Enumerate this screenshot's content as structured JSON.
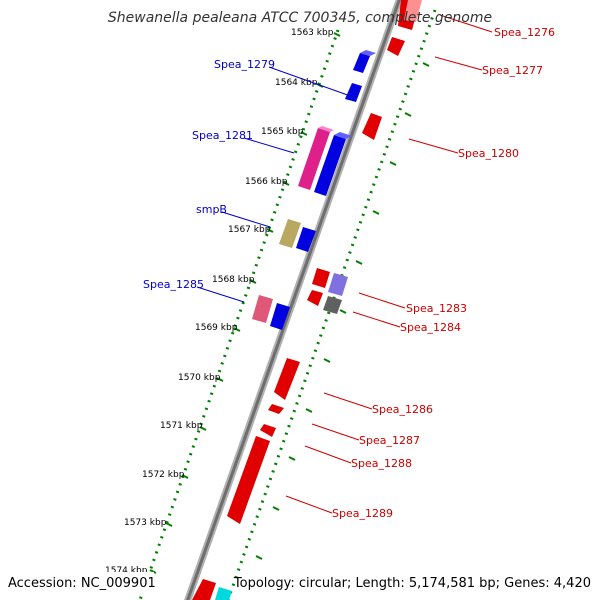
{
  "title": "Shewanella pealeana ATCC 700345, complete genome",
  "footer": {
    "accession": "Accession: NC_009901",
    "topology": "Topology: circular; Length: 5,174,581 bp; Genes: 4,420"
  },
  "colors": {
    "forward_label": "#0000cc",
    "reverse_label": "#cc0000",
    "tick": "#008000",
    "backbone": "#808080"
  },
  "kbp_labels": [
    "1563 kbp",
    "1564 kbp",
    "1565 kbp",
    "1566 kbp",
    "1567 kbp",
    "1568 kbp",
    "1569 kbp",
    "1570 kbp",
    "1571 kbp",
    "1572 kbp",
    "1573 kbp",
    "1574 kbp"
  ],
  "forward_genes": [
    "Spea_1279",
    "Spea_1281",
    "smpB",
    "Spea_1285"
  ],
  "reverse_genes": [
    "Spea_1276",
    "Spea_1277",
    "Spea_1280",
    "Spea_1283",
    "Spea_1284",
    "Spea_1286",
    "Spea_1287",
    "Spea_1288",
    "Spea_1289"
  ]
}
